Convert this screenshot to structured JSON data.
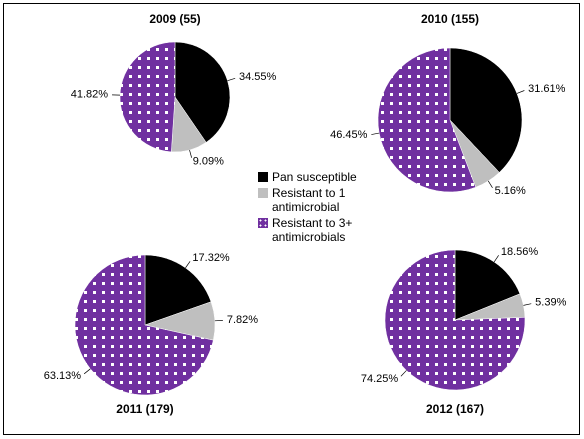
{
  "legend": {
    "categories": [
      "Pan susceptible",
      "Resistant to 1 antimicrobial",
      "Resistant to 3+ antimicrobials"
    ],
    "colors": [
      "#000000",
      "#bfbfbf",
      "#7030a0"
    ]
  },
  "chart_data": [
    {
      "type": "pie",
      "title": "2009 (55)",
      "values": [
        34.55,
        9.09,
        41.82
      ],
      "value_labels": [
        "34.55%",
        "9.09%",
        "41.82%"
      ]
    },
    {
      "type": "pie",
      "title": "2010 (155)",
      "values": [
        31.61,
        5.16,
        46.45
      ],
      "value_labels": [
        "31.61%",
        "5.16%",
        "46.45%"
      ]
    },
    {
      "type": "pie",
      "title": "2011 (179)",
      "values": [
        17.32,
        7.82,
        63.13
      ],
      "value_labels": [
        "17.32%",
        "7.82%",
        "63.13%"
      ]
    },
    {
      "type": "pie",
      "title": "2012 (167)",
      "values": [
        18.56,
        5.39,
        74.25
      ],
      "value_labels": [
        "18.56%",
        "5.39%",
        "74.25%"
      ]
    }
  ]
}
